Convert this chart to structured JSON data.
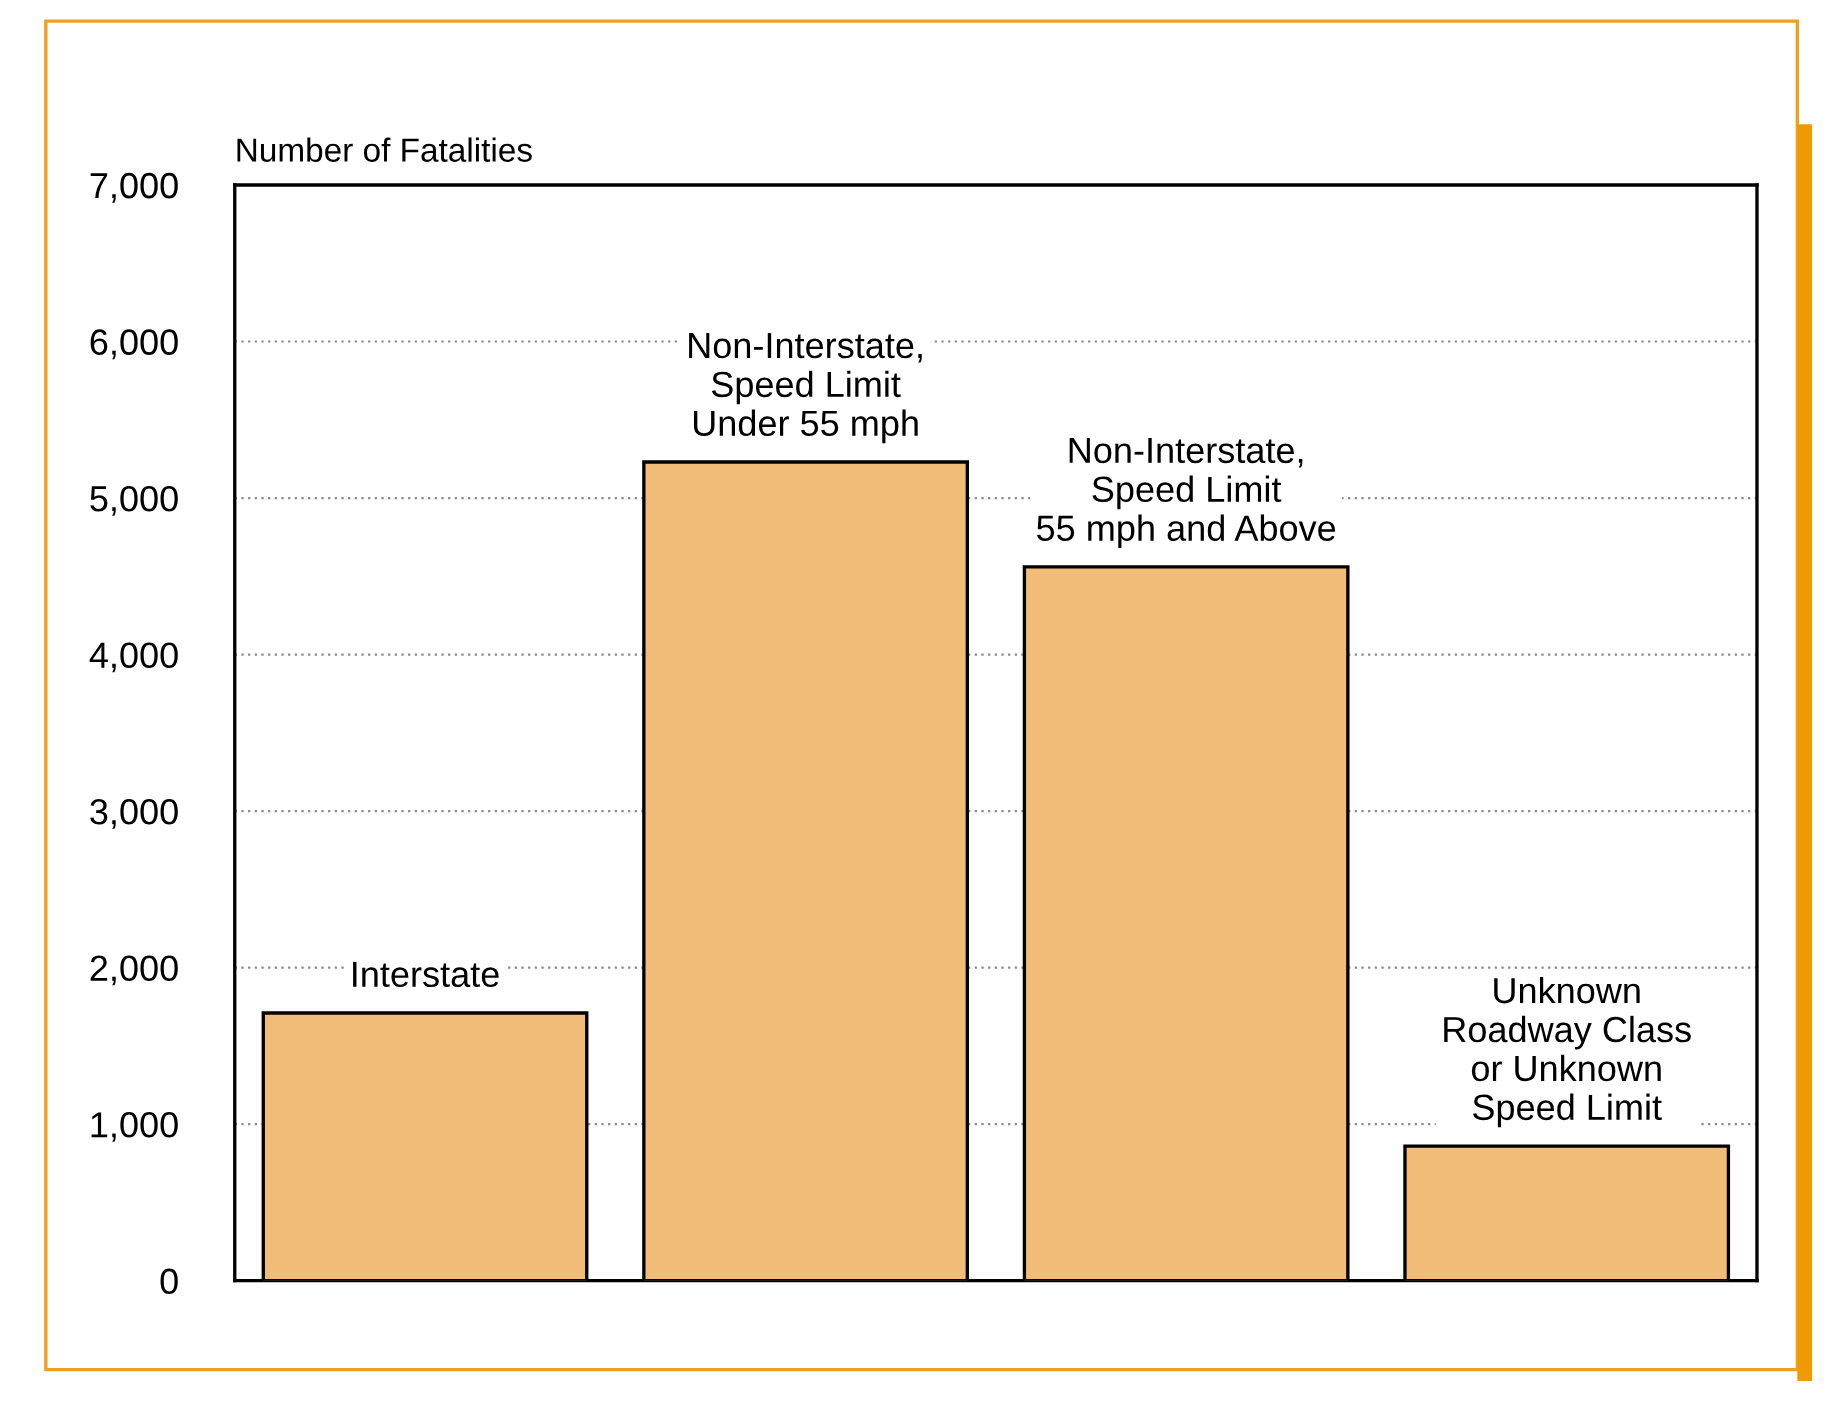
{
  "chart_data": {
    "type": "bar",
    "ylabel": "Number of Fatalities",
    "categories": [
      "Interstate",
      "Non-Interstate,\nSpeed Limit\nUnder 55 mph",
      "Non-Interstate,\nSpeed Limit\n55 mph and Above",
      "Unknown\nRoadway Class\nor Unknown\nSpeed Limit"
    ],
    "values": [
      1710,
      5230,
      4560,
      860
    ],
    "color": "#f0bc78",
    "ylim": [
      0,
      7000
    ],
    "yticks": [
      0,
      {
        "value": 1000,
        "label": "1,000"
      },
      {
        "value": 2000,
        "label": "2,000"
      },
      {
        "value": 3000,
        "label": "3,000"
      },
      {
        "value": 4000,
        "label": "4,000"
      },
      {
        "value": 5000,
        "label": "5,000"
      },
      {
        "value": 6000,
        "label": "6,000"
      },
      {
        "value": 7000,
        "label": "7,000"
      }
    ],
    "grid": "y"
  }
}
